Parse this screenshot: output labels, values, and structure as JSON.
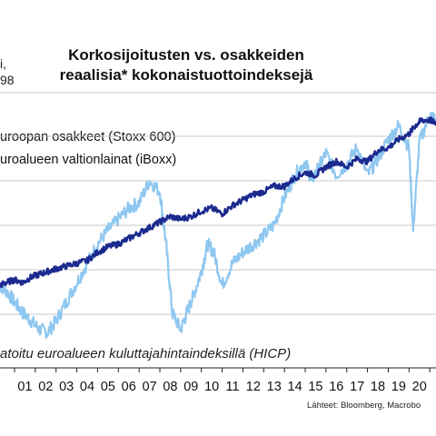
{
  "chart_data": {
    "type": "line",
    "title": "Korkosijoitusten vs. osakkeiden reaalisia* kokonaistuottoindeksejä",
    "title_lines": [
      "Korkosijoitusten vs. osakkeiden",
      "reaalisia* kokonaistuottoindeksejä"
    ],
    "ylabel_lines": [
      "i,",
      "98"
    ],
    "x_tick_labels": [
      "01",
      "02",
      "03",
      "04",
      "05",
      "06",
      "07",
      "08",
      "09",
      "10",
      "11",
      "12",
      "13",
      "14",
      "15",
      "16",
      "17",
      "18",
      "19",
      "20",
      "2"
    ],
    "xlim": [
      2000.3,
      2021.3
    ],
    "ylim": [
      0,
      100
    ],
    "ylim_note": "y axis has no printed tick values; values are relative readings 0-100",
    "grid": "horizontal",
    "series": [
      {
        "name": "uroopan osakkeet (Stoxx 600)",
        "color": "#1b2a8f",
        "x": [
          2000.3,
          2000.6,
          2001.0,
          2001.4,
          2001.8,
          2002.2,
          2002.6,
          2003.0,
          2003.5,
          2004.0,
          2004.5,
          2005.0,
          2005.5,
          2006.0,
          2006.5,
          2007.0,
          2007.5,
          2008.0,
          2008.5,
          2009.0,
          2009.5,
          2010.0,
          2010.5,
          2011.0,
          2011.5,
          2012.0,
          2012.5,
          2013.0,
          2013.5,
          2014.0,
          2014.5,
          2015.0,
          2015.5,
          2016.0,
          2016.5,
          2017.0,
          2017.5,
          2018.0,
          2018.5,
          2019.0,
          2019.5,
          2020.0,
          2020.3,
          2020.6,
          2021.0,
          2021.3
        ],
        "values": [
          30,
          31,
          32,
          31,
          33,
          34,
          35,
          36,
          37,
          38,
          39,
          42,
          44,
          45,
          47,
          49,
          51,
          53,
          55,
          54,
          55,
          57,
          58,
          56,
          59,
          61,
          63,
          64,
          66,
          66,
          69,
          71,
          70,
          73,
          75,
          73,
          76,
          75,
          79,
          80,
          83,
          85,
          88,
          90,
          90,
          89
        ]
      },
      {
        "name": "uroalueen valtionlainat (iBoxx)",
        "color": "#8ec7f0",
        "x": [
          2000.3,
          2000.6,
          2001.0,
          2001.4,
          2001.8,
          2002.2,
          2002.6,
          2003.0,
          2003.5,
          2004.0,
          2004.5,
          2005.0,
          2005.5,
          2006.0,
          2006.5,
          2007.0,
          2007.5,
          2008.0,
          2008.3,
          2008.6,
          2009.0,
          2009.3,
          2009.6,
          2010.0,
          2010.3,
          2010.6,
          2011.0,
          2011.5,
          2012.0,
          2012.5,
          2013.0,
          2013.5,
          2014.0,
          2014.5,
          2015.0,
          2015.3,
          2015.6,
          2016.0,
          2016.5,
          2017.0,
          2017.5,
          2018.0,
          2018.5,
          2019.0,
          2019.5,
          2020.0,
          2020.2,
          2020.5,
          2021.0,
          2021.3
        ],
        "values": [
          30,
          28,
          24,
          20,
          17,
          14,
          13,
          17,
          24,
          31,
          38,
          45,
          50,
          54,
          58,
          60,
          68,
          64,
          45,
          20,
          14,
          20,
          26,
          35,
          45,
          42,
          30,
          38,
          42,
          45,
          48,
          52,
          62,
          70,
          75,
          68,
          72,
          78,
          70,
          74,
          80,
          70,
          76,
          83,
          88,
          80,
          50,
          82,
          92,
          90
        ]
      }
    ],
    "note": "atoitu euroalueen kuluttajahintaindeksillä (HICP)",
    "source": "Lähteet: Bloomberg, Macrobo"
  }
}
